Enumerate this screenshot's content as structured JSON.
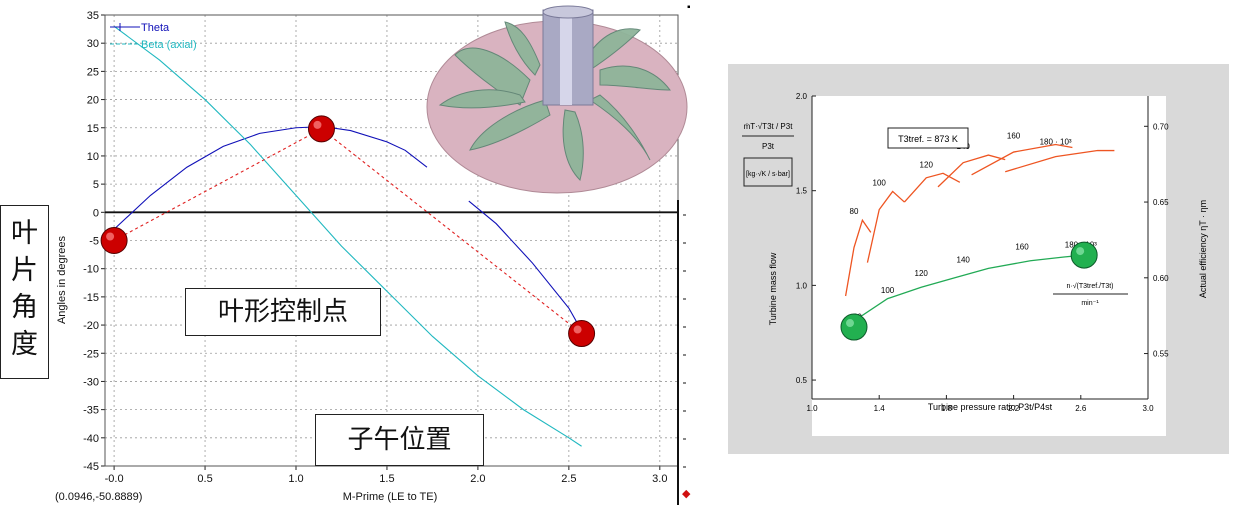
{
  "left_chart": {
    "yaxis_label": "Angles in degrees",
    "xaxis_label": "M-Prime (LE to TE)",
    "cursor_readout": "(0.0946,-50.8889)",
    "yticks": [
      "35",
      "30",
      "25",
      "20",
      "15",
      "10",
      "5",
      "0",
      "-5",
      "-10",
      "-15",
      "-20",
      "-25",
      "-30",
      "-35",
      "-40",
      "-45"
    ],
    "xticks": [
      "-0.0",
      "0.5",
      "1.0",
      "1.5",
      "2.0",
      "2.5",
      "3.0"
    ],
    "legend": {
      "theta": "Theta",
      "beta": "Beta (axial)"
    },
    "colors": {
      "theta": "#1010b8",
      "beta": "#20b8c0",
      "control": "#e02020",
      "dot": "#cc0000"
    }
  },
  "annotations": {
    "vertical_label": [
      "叶",
      "片",
      "角",
      "度"
    ],
    "control_points_label": "叶形控制点",
    "meridional_label": "子午位置"
  },
  "right_chart": {
    "xlabel": "Turbine pressure ratio P3t/P4st",
    "ylabel_left": "Turbine mass flow",
    "ylabel_right": "Actual efficiency ηT · ηm",
    "legend_box": "T3tref. = 873 K",
    "mass_flow_param": "ṁT·√T3t / P3t",
    "mass_flow_unit": "[kg·√K / s·bar]",
    "speed_param": "n·√(T3tref./T3t)",
    "speed_unit": "min⁻¹",
    "xticks": [
      "1.0",
      "1.4",
      "1.8",
      "2.2",
      "2.6",
      "3.0"
    ],
    "yticks_left": [
      "2.0",
      "1.5",
      "1.0",
      "0.5"
    ],
    "yticks_right": [
      "0.70",
      "0.65",
      "0.60",
      "0.55"
    ],
    "speed_labels_eff": [
      "80",
      "100",
      "120",
      "140",
      "160",
      "180 · 10³"
    ],
    "speed_labels_flow": [
      "80",
      "100",
      "120",
      "140",
      "160",
      "180 · 10³"
    ],
    "colors": {
      "eff": "#ee5522",
      "flow": "#22aa55",
      "marker": "#22b050"
    }
  },
  "chart_data": [
    {
      "type": "line",
      "title": "",
      "xlabel": "M-Prime (LE to TE)",
      "ylabel": "Angles in degrees",
      "xlim": [
        -0.05,
        3.1
      ],
      "ylim": [
        -45,
        35
      ],
      "grid": true,
      "legend": "top-left",
      "series": [
        {
          "name": "Theta",
          "x": [
            0.0,
            0.2,
            0.4,
            0.6,
            0.8,
            1.0,
            1.15,
            1.3,
            1.5,
            1.6,
            1.72,
            1.95,
            2.1,
            2.3,
            2.5,
            2.57
          ],
          "y": [
            -3,
            3,
            8,
            11.7,
            14,
            15,
            15.2,
            14.5,
            12.5,
            11,
            8,
            2,
            -2,
            -9,
            -17,
            -21
          ]
        },
        {
          "name": "Beta (axial)",
          "x": [
            0.0,
            0.25,
            0.5,
            0.75,
            1.0,
            1.25,
            1.5,
            1.75,
            2.0,
            2.25,
            2.5,
            2.57
          ],
          "y": [
            33,
            27,
            20,
            12,
            3,
            -6,
            -14,
            -22,
            -29,
            -35,
            -40,
            -41.5
          ]
        },
        {
          "name": "",
          "x": [
            0.0,
            1.14,
            2.57
          ],
          "y": [
            -5,
            14.8,
            -21.5
          ]
        }
      ]
    },
    {
      "type": "line",
      "title": "",
      "xlabel": "Turbine pressure ratio P3t/P4st",
      "ylabel": "Turbine mass flow",
      "xlim": [
        1.0,
        3.0
      ],
      "ylim": [
        0.4,
        2.0
      ],
      "series": [
        {
          "name": "",
          "x": [
            1.2,
            1.28,
            1.45,
            1.65,
            1.85,
            2.05,
            2.3,
            2.5,
            2.62
          ],
          "y": [
            0.74,
            0.83,
            0.93,
            0.99,
            1.04,
            1.09,
            1.13,
            1.15,
            1.16
          ]
        }
      ]
    },
    {
      "type": "line",
      "title": "",
      "xlabel": "Turbine pressure ratio P3t/P4st",
      "ylabel": "Actual efficiency ηT · ηm",
      "ylim": [
        0.52,
        0.72
      ],
      "series": [
        {
          "name": "80",
          "x": [
            1.2,
            1.25,
            1.3,
            1.35
          ],
          "y": [
            0.588,
            0.62,
            0.638,
            0.63
          ]
        },
        {
          "name": "100",
          "x": [
            1.33,
            1.4,
            1.48,
            1.55
          ],
          "y": [
            0.61,
            0.645,
            0.657,
            0.65
          ]
        },
        {
          "name": "120",
          "x": [
            1.55,
            1.68,
            1.78,
            1.88
          ],
          "y": [
            0.65,
            0.666,
            0.669,
            0.663
          ]
        },
        {
          "name": "140",
          "x": [
            1.75,
            1.9,
            2.05,
            2.15
          ],
          "y": [
            0.66,
            0.676,
            0.681,
            0.678
          ]
        },
        {
          "name": "160",
          "x": [
            1.95,
            2.2,
            2.45,
            2.55
          ],
          "y": [
            0.668,
            0.683,
            0.688,
            0.686
          ]
        },
        {
          "name": "180 · 10³",
          "x": [
            2.15,
            2.45,
            2.7,
            2.8
          ],
          "y": [
            0.67,
            0.68,
            0.684,
            0.684
          ]
        }
      ]
    }
  ]
}
